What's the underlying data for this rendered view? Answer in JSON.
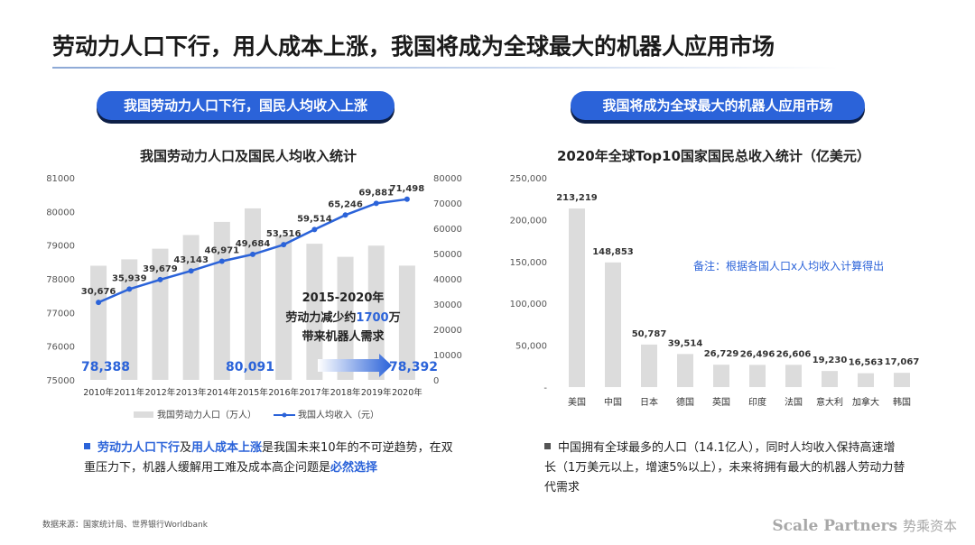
{
  "page": {
    "title": "劳动力人口下行，用人成本上涨，我国将成为全球最大的机器人应用市场",
    "pill_left": "我国劳动力人口下行，国民人均收入上涨",
    "pill_right": "我国将成为全球最大的机器人应用市场",
    "source": "数据来源：国家统计局、世界银行Worldbank",
    "brand_en": "Scale Partners",
    "brand_cn": "势乘资本"
  },
  "left_bullet": {
    "p1": "劳动力人口下行",
    "p2": "及",
    "p3": "用人成本上涨",
    "p4": "是我国未来10年的不可逆趋势，在双重压力下，机器人缓解用工难及成本高企问题是",
    "p5": "必然选择"
  },
  "right_bullet": {
    "text": "中国拥有全球最多的人口（14.1亿人），同时人均收入保持高速增长（1万美元以上，增速5%以上），未来将拥有最大的机器人劳动力替代需求"
  },
  "colors": {
    "accent": "#2b63d9",
    "bar": "#dcdcdc",
    "bullet_square": "#2b63d9",
    "bullet_square_right": "#555555"
  },
  "chart_data": [
    {
      "type": "bar+line",
      "title": "我国劳动力人口及国民人均收入统计",
      "categories": [
        "2010年",
        "2011年",
        "2012年",
        "2013年",
        "2014年",
        "2015年",
        "2016年",
        "2017年",
        "2018年",
        "2019年",
        "2020年"
      ],
      "series": [
        {
          "name": "我国劳动力人口（万人）",
          "type": "bar",
          "axis": "left",
          "values": [
            78388,
            78579,
            78894,
            79300,
            79690,
            80091,
            79282,
            79042,
            78653,
            78985,
            78392
          ]
        },
        {
          "name": "我国人均收入（元）",
          "type": "line",
          "axis": "right",
          "values": [
            30676,
            35939,
            39679,
            43143,
            46971,
            49684,
            53516,
            59514,
            65246,
            69881,
            71498
          ],
          "labels": [
            "30,676",
            "35,939",
            "39,679",
            "43,143",
            "46,971",
            "49,684",
            "53,516",
            "59,514",
            "65,246",
            "69,881",
            "71,498"
          ]
        }
      ],
      "ylim_left": [
        75000,
        81000
      ],
      "yticks_left": [
        "75000",
        "76000",
        "77000",
        "78000",
        "79000",
        "80000",
        "81000"
      ],
      "ylim_right": [
        0,
        80000
      ],
      "yticks_right": [
        "0",
        "10000",
        "20000",
        "30000",
        "40000",
        "50000",
        "60000",
        "70000",
        "80000"
      ],
      "bar_callouts": [
        {
          "index": 0,
          "label": "78,388"
        },
        {
          "index": 5,
          "label": "80,091"
        },
        {
          "index": 10,
          "label": "78,392"
        }
      ],
      "annotation": {
        "line1": "2015-2020年",
        "line2a": "劳动力减少约",
        "line2b": "1700",
        "line2c": "万",
        "line3": "带来机器人需求"
      },
      "legend_position": "bottom"
    },
    {
      "type": "bar",
      "title": "2020年全球Top10国家国民总收入统计（亿美元）",
      "categories": [
        "美国",
        "中国",
        "日本",
        "德国",
        "英国",
        "印度",
        "法国",
        "意大利",
        "加拿大",
        "韩国"
      ],
      "values": [
        213219,
        148853,
        50787,
        39514,
        26729,
        26496,
        26606,
        19230,
        16563,
        17067
      ],
      "labels": [
        "213,219",
        "148,853",
        "50,787",
        "39,514",
        "26,729",
        "26,496",
        "26,606",
        "19,230",
        "16,563",
        "17,067"
      ],
      "ylim": [
        0,
        250000
      ],
      "yticks": [
        "-",
        "50,000",
        "100,000",
        "150,000",
        "200,000",
        "250,000"
      ],
      "note": "备注：根据各国人口x人均收入计算得出"
    }
  ]
}
